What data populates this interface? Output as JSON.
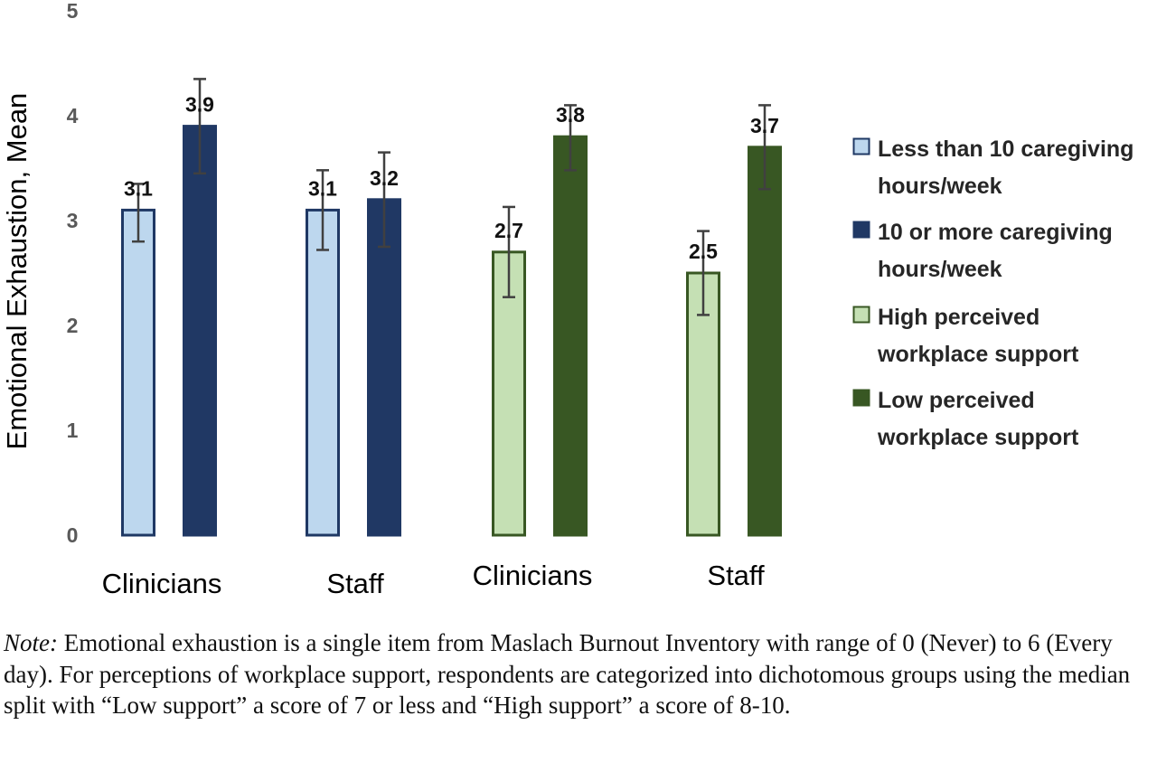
{
  "chart_data": {
    "type": "bar",
    "ylabel": "Emotional Exhaustion, Mean",
    "ylim": [
      0,
      5
    ],
    "yticks": [
      "0",
      "1",
      "2",
      "3",
      "4",
      "5"
    ],
    "grid": false,
    "legend_position": "right",
    "groups": [
      {
        "label": "Clinicians",
        "bars": [
          {
            "series": "Less than 10 caregiving hours/week",
            "value": 3.1,
            "label": "3.1",
            "err_low": 2.8,
            "err_high": 3.35
          },
          {
            "series": "10 or more caregiving hours/week",
            "value": 3.9,
            "label": "3.9",
            "err_low": 3.45,
            "err_high": 4.35
          }
        ]
      },
      {
        "label": "Staff",
        "bars": [
          {
            "series": "Less than 10 caregiving hours/week",
            "value": 3.1,
            "label": "3.1",
            "err_low": 2.72,
            "err_high": 3.48
          },
          {
            "series": "10 or more caregiving hours/week",
            "value": 3.2,
            "label": "3.2",
            "err_low": 2.75,
            "err_high": 3.65
          }
        ]
      },
      {
        "label": "Clinicians",
        "bars": [
          {
            "series": "High perceived workplace support",
            "value": 2.7,
            "label": "2.7",
            "err_low": 2.27,
            "err_high": 3.13
          },
          {
            "series": "Low perceived workplace support",
            "value": 3.8,
            "label": "3.8",
            "err_low": 3.48,
            "err_high": 4.1
          }
        ]
      },
      {
        "label": "Staff",
        "bars": [
          {
            "series": "High perceived workplace support",
            "value": 2.5,
            "label": "2.5",
            "err_low": 2.1,
            "err_high": 2.9
          },
          {
            "series": "Low perceived workplace support",
            "value": 3.7,
            "label": "3.7",
            "err_low": 3.3,
            "err_high": 4.1
          }
        ]
      }
    ],
    "series": [
      {
        "name": "Less than 10 caregiving hours/week",
        "legend_lines": [
          "Less than 10 caregiving",
          "hours/week"
        ],
        "fill": "#bdd7ee",
        "stroke": "#1f3864"
      },
      {
        "name": "10 or more caregiving hours/week",
        "legend_lines": [
          "10 or more caregiving",
          "hours/week"
        ],
        "fill": "#203864",
        "stroke": "#203864"
      },
      {
        "name": "High perceived workplace support",
        "legend_lines": [
          "High perceived",
          "workplace support"
        ],
        "fill": "#c5e0b4",
        "stroke": "#385723"
      },
      {
        "name": "Low perceived workplace support",
        "legend_lines": [
          "Low perceived",
          "workplace support"
        ],
        "fill": "#385723",
        "stroke": "#385723"
      }
    ]
  },
  "note": {
    "label": "Note:",
    "text": " Emotional exhaustion is a single item from Maslach Burnout Inventory with range of 0 (Never) to 6 (Every day). For perceptions of workplace support, respondents are categorized into dichotomous groups using the median split with “Low support” a score of 7 or less and “High support” a score of 8-10."
  }
}
